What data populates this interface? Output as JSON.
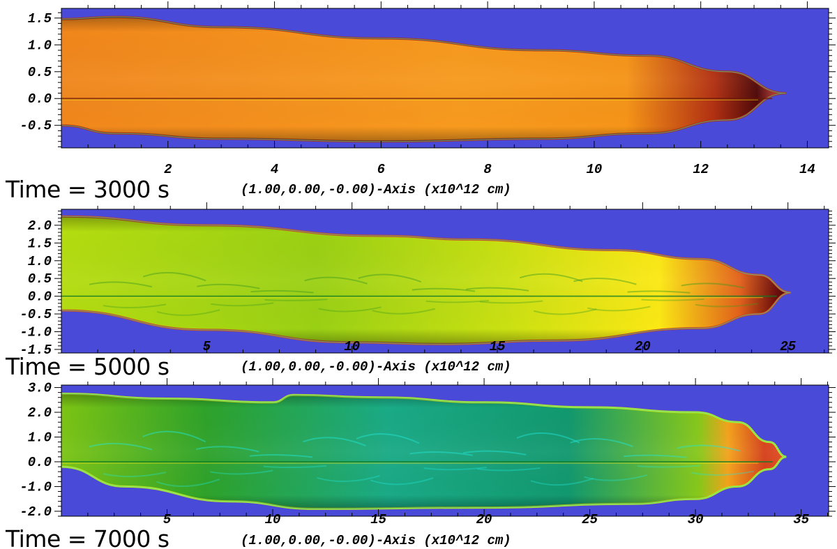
{
  "background_color": "#4a4ad8",
  "colormap": [
    "#3a0606",
    "#9c1e0c",
    "#e2601a",
    "#f79a1e",
    "#fbe814",
    "#b4dc10",
    "#4cb41c",
    "#138a26",
    "#10b49a",
    "#20e8dc"
  ],
  "chart_data": [
    {
      "type": "heatmap",
      "time_label": "Time =  3000 s",
      "xlabel": "(1.00,0.00,-0.00)-Axis (x10^12 cm)",
      "xlim": [
        0,
        14.4
      ],
      "ylim": [
        -0.92,
        1.68
      ],
      "xticks": [
        2,
        4,
        6,
        8,
        10,
        12,
        14
      ],
      "xtick_labels": [
        "2",
        "4",
        "6",
        "8",
        "10",
        "12",
        "14"
      ],
      "yticks": [
        1.5,
        1.0,
        0.5,
        0.0,
        -0.5
      ],
      "ytick_labels": [
        "1.5",
        "1.0",
        "0.5",
        "0.0",
        "-0.5"
      ],
      "head_x": 13.6,
      "top_edge": [
        [
          0,
          1.48
        ],
        [
          1,
          1.52
        ],
        [
          3,
          1.33
        ],
        [
          6,
          1.12
        ],
        [
          9,
          0.9
        ],
        [
          11,
          0.8
        ],
        [
          12.5,
          0.5
        ],
        [
          13.6,
          0.1
        ]
      ],
      "bottom_edge": [
        [
          0,
          -0.5
        ],
        [
          1,
          -0.65
        ],
        [
          3,
          -0.75
        ],
        [
          6,
          -0.8
        ],
        [
          9,
          -0.75
        ],
        [
          11,
          -0.65
        ],
        [
          12.5,
          -0.4
        ],
        [
          13.6,
          0.1
        ]
      ],
      "fill_stops": [
        [
          0,
          "#f0861c"
        ],
        [
          0.55,
          "#f79a1e"
        ],
        [
          0.78,
          "#f59418"
        ],
        [
          0.9,
          "#b23012"
        ],
        [
          0.96,
          "#4e0808"
        ],
        [
          1,
          "#e65858"
        ]
      ],
      "edge_color": "#b0320c"
    },
    {
      "type": "heatmap",
      "time_label": "Time =  5000 s",
      "xlabel": "(1.00,0.00,-0.00)-Axis (x10^12 cm)",
      "xlim": [
        0,
        26.4
      ],
      "ylim": [
        -1.6,
        2.45
      ],
      "xticks": [
        5,
        10,
        15,
        20,
        25
      ],
      "xtick_labels": [
        "5",
        "10",
        "15",
        "20",
        "25"
      ],
      "yticks": [
        2.0,
        1.5,
        1.0,
        0.5,
        0.0,
        -0.5,
        -1.0,
        -1.5
      ],
      "ytick_labels": [
        "2.0",
        "1.5",
        "1.0",
        "0.5",
        "0.0",
        "-0.5",
        "-1.0",
        "-1.5"
      ],
      "head_x": 25.1,
      "top_edge": [
        [
          0,
          2.25
        ],
        [
          5,
          2.0
        ],
        [
          11,
          1.7
        ],
        [
          14,
          1.6
        ],
        [
          19,
          1.3
        ],
        [
          22,
          1.05
        ],
        [
          24,
          0.6
        ],
        [
          25.1,
          0.1
        ]
      ],
      "bottom_edge": [
        [
          0,
          -0.4
        ],
        [
          5,
          -0.95
        ],
        [
          10,
          -1.3
        ],
        [
          13,
          -1.35
        ],
        [
          17,
          -1.25
        ],
        [
          22,
          -0.9
        ],
        [
          24,
          -0.5
        ],
        [
          25.1,
          0.1
        ]
      ],
      "fill_stops": [
        [
          0,
          "#b4dc10"
        ],
        [
          0.35,
          "#9ad014"
        ],
        [
          0.6,
          "#c8e012"
        ],
        [
          0.82,
          "#fbe814"
        ],
        [
          0.93,
          "#e2601a"
        ],
        [
          0.98,
          "#6a0a08"
        ],
        [
          1,
          "#3a0606"
        ]
      ],
      "edge_color": "#d24a14"
    },
    {
      "type": "heatmap",
      "time_label": "Time =  7000 s",
      "xlabel": "(1.00,0.00,-0.00)-Axis (x10^12 cm)",
      "xlim": [
        0,
        36.3
      ],
      "ylim": [
        -2.2,
        3.1
      ],
      "xticks": [
        5,
        10,
        15,
        20,
        25,
        30,
        35
      ],
      "xtick_labels": [
        "5",
        "10",
        "15",
        "20",
        "25",
        "30",
        "35"
      ],
      "yticks": [
        3.0,
        2.0,
        1.0,
        0.0,
        -1.0,
        -2.0
      ],
      "ytick_labels": [
        "3.0",
        "2.0",
        "1.0",
        "0.0",
        "-1.0",
        "-2.0"
      ],
      "head_x": 34.3,
      "top_edge": [
        [
          0,
          2.75
        ],
        [
          5,
          2.55
        ],
        [
          10,
          2.4
        ],
        [
          11,
          2.7
        ],
        [
          15,
          2.6
        ],
        [
          20,
          2.4
        ],
        [
          25,
          2.2
        ],
        [
          30,
          2.0
        ],
        [
          32,
          1.6
        ],
        [
          33.5,
          0.8
        ],
        [
          34.3,
          0.2
        ]
      ],
      "bottom_edge": [
        [
          0,
          -0.2
        ],
        [
          3,
          -1.0
        ],
        [
          8,
          -1.6
        ],
        [
          12,
          -1.9
        ],
        [
          20,
          -1.85
        ],
        [
          27,
          -1.7
        ],
        [
          30,
          -1.5
        ],
        [
          32,
          -1.0
        ],
        [
          33.5,
          -0.3
        ],
        [
          34.3,
          0.2
        ]
      ],
      "fill_stops": [
        [
          0,
          "#7cc414"
        ],
        [
          0.2,
          "#2ea22a"
        ],
        [
          0.45,
          "#1aaa86"
        ],
        [
          0.7,
          "#12986e"
        ],
        [
          0.88,
          "#88c81a"
        ],
        [
          0.92,
          "#f4a21c"
        ],
        [
          0.97,
          "#d4401a"
        ],
        [
          1,
          "#e25028"
        ]
      ],
      "edge_color": "#c6e412"
    }
  ]
}
